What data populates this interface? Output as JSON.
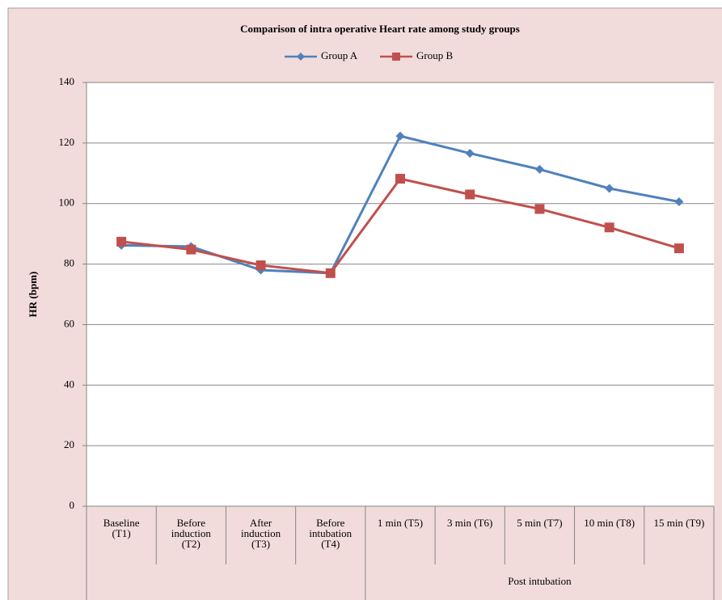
{
  "chart_data": {
    "type": "line",
    "title": "Comparison of intra operative  Heart rate among study groups",
    "y_label": "HR (bpm)",
    "categories": [
      "Baseline\n(T1)",
      "Before\ninduction\n(T2)",
      "After\ninduction\n(T3)",
      "Before\nintubation\n(T4)",
      "1 min (T5)",
      "3 min (T6)",
      "5 min (T7)",
      "10 min (T8)",
      "15 min (T9)"
    ],
    "category_groups": [
      {
        "label": "Post intubation",
        "from": 4,
        "to": 8
      }
    ],
    "series": [
      {
        "name": "Group A",
        "color": "#4f81bd",
        "marker": "diamond",
        "values": [
          86.2,
          85.8,
          78,
          77,
          122.3,
          116.6,
          111.3,
          105,
          100.6
        ]
      },
      {
        "name": "Group B",
        "color": "#c0504d",
        "marker": "square",
        "values": [
          87.4,
          84.8,
          79.6,
          77,
          108.2,
          103,
          98.2,
          92.1,
          85.2
        ]
      }
    ],
    "ylim": [
      0,
      140
    ],
    "yticks": [
      0,
      20,
      40,
      60,
      80,
      100,
      120,
      140
    ],
    "grid": true,
    "legend": "top"
  }
}
